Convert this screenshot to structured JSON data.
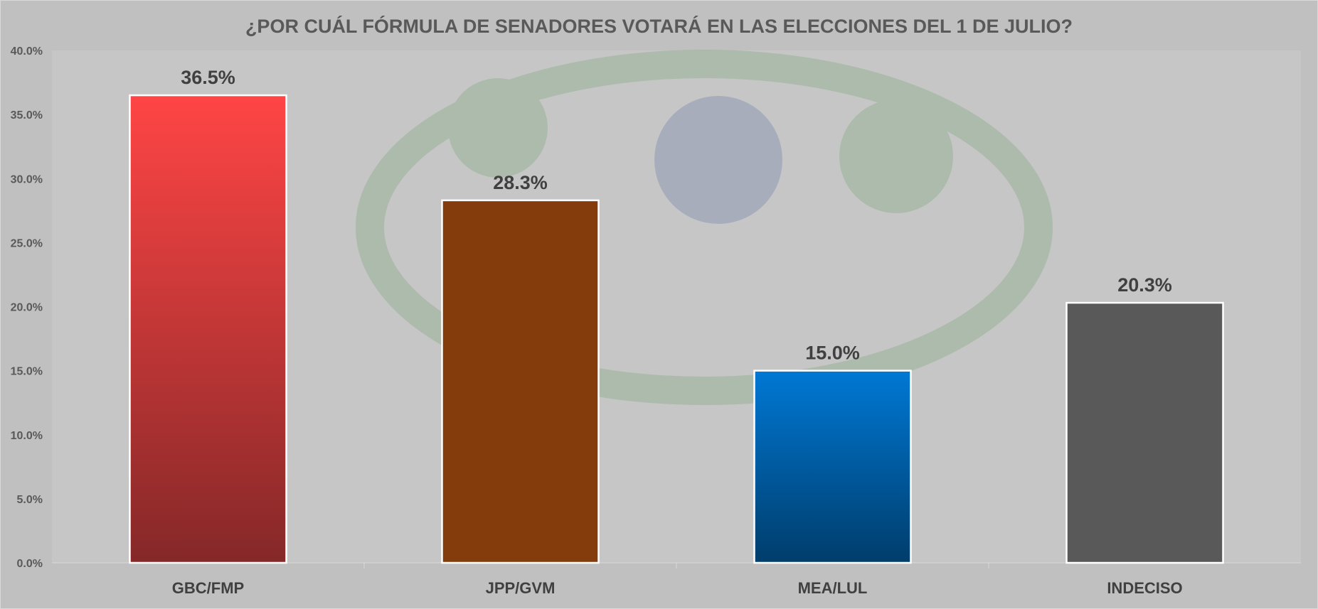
{
  "chart_data": {
    "type": "bar",
    "title": "¿POR CUÁL FÓRMULA DE SENADORES VOTARÁ EN LAS ELECCIONES DEL 1 DE JULIO?",
    "categories": [
      "GBC/FMP",
      "JPP/GVM",
      "MEA/LUL",
      "INDECISO"
    ],
    "values": [
      36.5,
      28.3,
      15.0,
      20.3
    ],
    "data_labels": [
      "36.5%",
      "28.3%",
      "15.0%",
      "20.3%"
    ],
    "colors": [
      [
        "#ff4545",
        "#852828"
      ],
      [
        "#843c0c",
        "#843c0c"
      ],
      [
        "#0078d4",
        "#003d6b"
      ],
      [
        "#595959",
        "#595959"
      ]
    ],
    "xlabel": "",
    "ylabel": "",
    "ylim": [
      0,
      40
    ],
    "yticks": [
      "0.0%",
      "5.0%",
      "10.0%",
      "15.0%",
      "20.0%",
      "25.0%",
      "30.0%",
      "35.0%",
      "40.0%"
    ],
    "grid": false,
    "legend": "none"
  }
}
